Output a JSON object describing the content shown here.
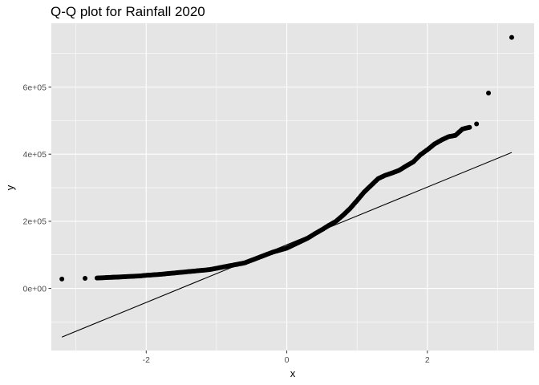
{
  "chart_data": {
    "type": "scatter",
    "title": "Q-Q plot for Rainfall 2020",
    "xlabel": "x",
    "ylabel": "y",
    "xlim": [
      -3.35,
      3.52
    ],
    "ylim": [
      -185000,
      790000
    ],
    "x_ticks": [
      -2,
      0,
      2
    ],
    "x_tick_labels": [
      "-2",
      "0",
      "2"
    ],
    "y_ticks": [
      0,
      200000,
      400000,
      600000
    ],
    "y_tick_labels": [
      "0e+00",
      "2e+05",
      "4e+05",
      "6e+05"
    ],
    "grid": true,
    "legend": "none",
    "colors": {
      "panel": "#e5e5e5",
      "grid": "#ffffff",
      "points": "#000000",
      "line": "#000000"
    },
    "reference_line": {
      "x": [
        -3.2,
        3.2
      ],
      "y": [
        -145000,
        405000
      ]
    },
    "points": {
      "x": [
        -3.2,
        -2.87,
        -2.7,
        -2.6,
        -2.5,
        -2.44,
        -2.38,
        -2.3,
        -2.2,
        -2.1,
        -2.0,
        -1.9,
        -1.8,
        -1.7,
        -1.6,
        -1.5,
        -1.4,
        -1.3,
        -1.2,
        -1.1,
        -1.0,
        -0.9,
        -0.8,
        -0.7,
        -0.6,
        -0.5,
        -0.4,
        -0.3,
        -0.2,
        -0.1,
        0.0,
        0.1,
        0.2,
        0.3,
        0.4,
        0.5,
        0.6,
        0.7,
        0.8,
        0.9,
        1.0,
        1.1,
        1.2,
        1.3,
        1.4,
        1.5,
        1.6,
        1.7,
        1.8,
        1.9,
        2.0,
        2.1,
        2.2,
        2.3,
        2.4,
        2.5,
        2.6,
        2.7,
        2.87,
        3.2
      ],
      "y": [
        28000,
        30000,
        31000,
        32000,
        33000,
        33500,
        34000,
        35000,
        36000,
        37000,
        39000,
        40500,
        42000,
        44000,
        46000,
        48000,
        50000,
        52000,
        54000,
        56000,
        60000,
        64000,
        68000,
        72000,
        76000,
        84000,
        92000,
        100000,
        108000,
        114000,
        120000,
        130000,
        140000,
        150000,
        163000,
        175000,
        188000,
        200000,
        218000,
        238000,
        262000,
        287000,
        307000,
        327000,
        337000,
        344000,
        352000,
        365000,
        377000,
        398000,
        413000,
        430000,
        442000,
        452000,
        456000,
        475000,
        480000,
        490000,
        582000,
        748000
      ]
    }
  }
}
